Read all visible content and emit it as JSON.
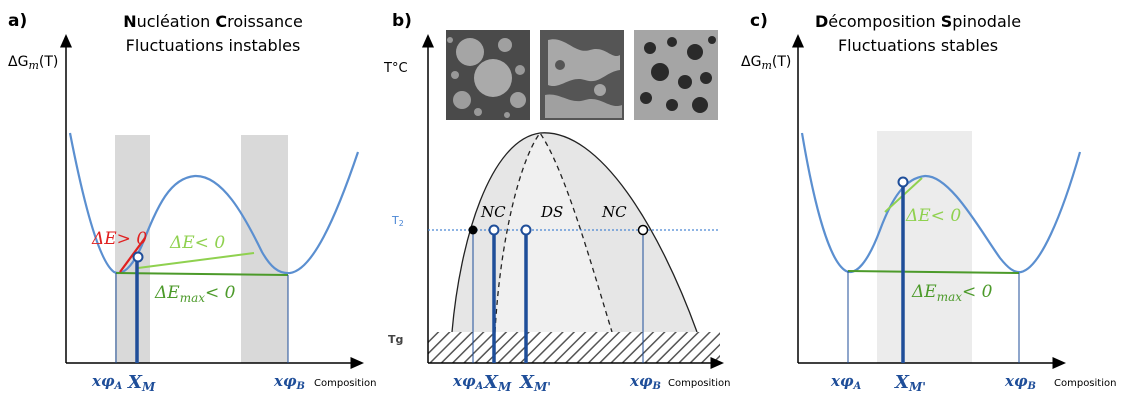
{
  "panel_a": {
    "letter": "a)",
    "title1_first": "N",
    "title1_word1": "ucléation ",
    "title1_second": "C",
    "title1_word2": "roissance",
    "title2": "Fluctuations instables",
    "y_axis_label": "ΔG",
    "y_axis_sub": "m",
    "y_axis_tail": "(T)",
    "delta_e_pos": "ΔE> 0",
    "delta_e_neg": "ΔE< 0",
    "delta_emax_main": "ΔE",
    "delta_emax_sub": "max",
    "delta_emax_tail": "< 0",
    "x_phi_a": "xφ",
    "x_phi_a_sub": "A",
    "x_m": "X",
    "x_m_sub": "M",
    "x_phi_b": "xφ",
    "x_phi_b_sub": "B",
    "x_axis_label": "Composition",
    "colors": {
      "curve": "#5b8fd0",
      "red": "#e02020",
      "light_green": "#8fd14f",
      "green": "#4c9a2a",
      "dark_blue": "#1f4e99",
      "band": "#d9d9d9"
    }
  },
  "panel_b": {
    "letter": "b)",
    "y_axis_label": "T°C",
    "t2_label": "T",
    "t2_sub": "2",
    "tg_label": "Tg",
    "nc_left": "NC",
    "ds": "DS",
    "nc_right": "NC",
    "x_phi_a": "xφ",
    "x_phi_a_sub": "A",
    "x_m": "X",
    "x_m_sub": "M",
    "x_mp": "X",
    "x_mp_sub": "M'",
    "x_phi_b": "xφ",
    "x_phi_b_sub": "B",
    "x_axis_label": "Composition",
    "micrographs": [
      "droplets",
      "spinodal",
      "spots"
    ]
  },
  "panel_c": {
    "letter": "c)",
    "title1_first": "D",
    "title1_word1": "écomposition ",
    "title1_second": "S",
    "title1_word2": "pinodale",
    "title2": "Fluctuations stables",
    "y_axis_label": "ΔG",
    "y_axis_sub": "m",
    "y_axis_tail": "(T)",
    "delta_e_neg": "ΔE< 0",
    "delta_emax_main": "ΔE",
    "delta_emax_sub": "max",
    "delta_emax_tail": "< 0",
    "x_phi_a": "xφ",
    "x_phi_a_sub": "A",
    "x_mp": "X",
    "x_mp_sub": "M'",
    "x_phi_b": "xφ",
    "x_phi_b_sub": "B",
    "x_axis_label": "Composition"
  }
}
